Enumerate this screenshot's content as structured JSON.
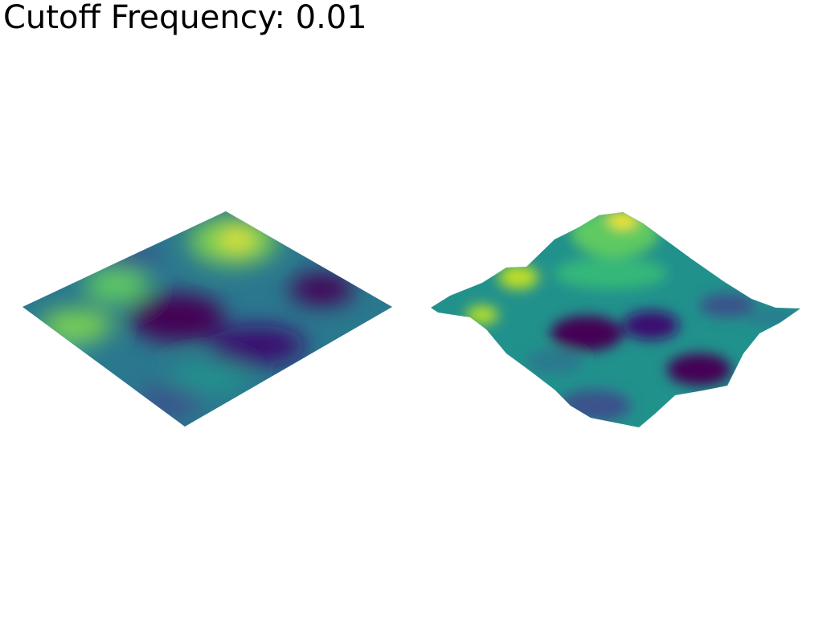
{
  "title": "Cutoff Frequency: 0.01"
}
